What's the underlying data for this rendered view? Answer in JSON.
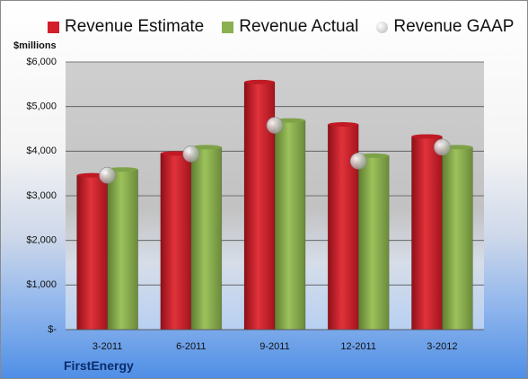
{
  "chart_data": {
    "type": "bar",
    "title": "",
    "unit_label": "$millions",
    "company": "FirstEnergy",
    "categories": [
      "3-2011",
      "6-2011",
      "9-2011",
      "12-2011",
      "3-2012"
    ],
    "y_tick_values": [
      0,
      1000,
      2000,
      3000,
      4000,
      5000,
      6000
    ],
    "y_tick_labels": [
      "$-",
      "$1,000",
      "$2,000",
      "$3,000",
      "$4,000",
      "$5,000",
      "$6,000"
    ],
    "ylim": [
      0,
      6000
    ],
    "grid": true,
    "legend_position": "top",
    "series": [
      {
        "name": "Revenue Estimate",
        "kind": "bar",
        "color": "#d21f2a",
        "values": [
          3460,
          3950,
          5550,
          4600,
          4330
        ]
      },
      {
        "name": "Revenue Actual",
        "kind": "bar",
        "color": "#8bb04f",
        "values": [
          3590,
          4090,
          4690,
          3900,
          4090
        ]
      },
      {
        "name": "Revenue GAAP",
        "kind": "marker",
        "color": "#c9c9c9",
        "values": [
          3460,
          3940,
          4580,
          3780,
          4090
        ]
      }
    ]
  }
}
